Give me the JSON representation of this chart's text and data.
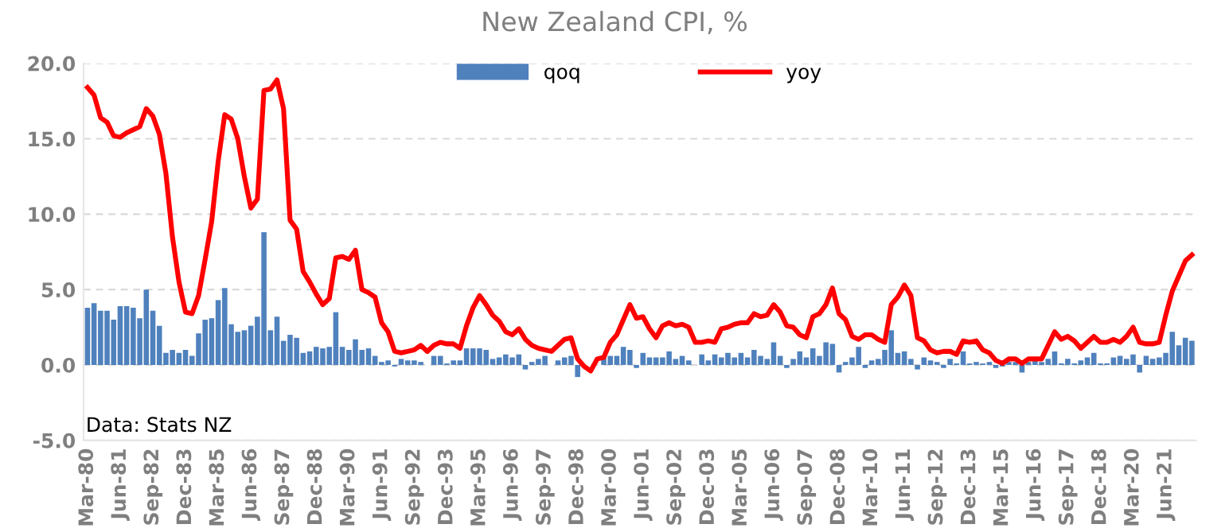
{
  "chart_data": {
    "type": "bar",
    "title": "New Zealand CPI, %",
    "categories": [
      "Mar-80",
      null,
      null,
      null,
      null,
      "Jun-81",
      null,
      null,
      null,
      null,
      "Sep-82",
      null,
      null,
      null,
      null,
      "Dec-83",
      null,
      null,
      null,
      null,
      "Mar-85",
      null,
      null,
      null,
      null,
      "Jun-86",
      null,
      null,
      null,
      null,
      "Sep-87",
      null,
      null,
      null,
      null,
      "Dec-88",
      null,
      null,
      null,
      null,
      "Mar-90",
      null,
      null,
      null,
      null,
      "Jun-91",
      null,
      null,
      null,
      null,
      "Sep-92",
      null,
      null,
      null,
      null,
      "Dec-93",
      null,
      null,
      null,
      null,
      "Mar-95",
      null,
      null,
      null,
      null,
      "Jun-96",
      null,
      null,
      null,
      null,
      "Sep-97",
      null,
      null,
      null,
      null,
      "Dec-98",
      null,
      null,
      null,
      null,
      "Mar-00",
      null,
      null,
      null,
      null,
      "Jun-01",
      null,
      null,
      null,
      null,
      "Sep-02",
      null,
      null,
      null,
      null,
      "Dec-03",
      null,
      null,
      null,
      null,
      "Mar-05",
      null,
      null,
      null,
      null,
      "Jun-06",
      null,
      null,
      null,
      null,
      "Sep-07",
      null,
      null,
      null,
      null,
      "Dec-08",
      null,
      null,
      null,
      null,
      "Mar-10",
      null,
      null,
      null,
      null,
      "Jun-11",
      null,
      null,
      null,
      null,
      "Sep-12",
      null,
      null,
      null,
      null,
      "Dec-13",
      null,
      null,
      null,
      null,
      "Mar-15",
      null,
      null,
      null,
      null,
      "Jun-16",
      null,
      null,
      null,
      null,
      "Sep-17",
      null,
      null,
      null,
      null,
      "Dec-18",
      null,
      null,
      null,
      null,
      "Mar-20",
      null,
      null,
      null,
      null,
      "Jun-21",
      null,
      null,
      null,
      null
    ],
    "series": [
      {
        "name": "qoq",
        "color": "#4f81bd",
        "values": [
          3.8,
          4.1,
          3.6,
          3.6,
          3.0,
          3.9,
          3.9,
          3.8,
          3.1,
          5.0,
          3.6,
          2.6,
          0.8,
          1.0,
          0.8,
          1.0,
          0.6,
          2.1,
          3.0,
          3.1,
          4.3,
          5.1,
          2.7,
          2.2,
          2.3,
          2.6,
          3.2,
          8.8,
          2.3,
          3.2,
          1.6,
          2.0,
          1.8,
          0.8,
          0.9,
          1.2,
          1.1,
          1.2,
          3.5,
          1.2,
          1.0,
          1.7,
          1.0,
          1.1,
          0.6,
          0.2,
          0.3,
          -0.1,
          0.4,
          0.3,
          0.3,
          0.2,
          0.0,
          0.6,
          0.6,
          0.1,
          0.3,
          0.3,
          1.1,
          1.1,
          1.1,
          1.0,
          0.4,
          0.5,
          0.7,
          0.5,
          0.7,
          -0.3,
          0.2,
          0.4,
          0.6,
          0.0,
          0.3,
          0.5,
          0.6,
          -0.8,
          null,
          0.0,
          null,
          0.5,
          0.6,
          0.6,
          1.2,
          1.0,
          -0.2,
          0.8,
          0.5,
          0.5,
          0.5,
          0.9,
          0.4,
          0.6,
          0.3,
          0.0,
          0.7,
          0.3,
          0.7,
          0.5,
          0.8,
          0.5,
          0.8,
          0.5,
          1.0,
          0.6,
          0.4,
          1.5,
          0.6,
          -0.2,
          0.4,
          0.9,
          0.5,
          1.1,
          0.6,
          1.5,
          1.4,
          -0.5,
          0.2,
          0.5,
          1.2,
          -0.2,
          0.3,
          0.4,
          1.0,
          2.3,
          0.8,
          0.9,
          0.4,
          -0.3,
          0.5,
          0.3,
          0.2,
          -0.2,
          0.4,
          0.1,
          0.9,
          0.1,
          0.2,
          0.1,
          0.2,
          -0.2,
          -0.1,
          0.2,
          0.2,
          -0.5,
          0.2,
          0.3,
          0.2,
          0.4,
          0.9,
          0.1,
          0.4,
          0.1,
          0.3,
          0.5,
          0.8,
          0.1,
          0.1,
          0.5,
          0.6,
          0.4,
          0.7,
          -0.5,
          0.6,
          0.4,
          0.5,
          0.8,
          2.2,
          1.3,
          1.8,
          1.6
        ]
      },
      {
        "name": "yoy",
        "type": "line",
        "color": "#ff0000",
        "values": [
          18.4,
          17.9,
          16.4,
          16.1,
          15.2,
          15.1,
          15.4,
          15.6,
          15.8,
          17.0,
          16.5,
          15.3,
          12.7,
          8.5,
          5.5,
          3.5,
          3.4,
          4.6,
          7.0,
          9.5,
          13.5,
          16.6,
          16.3,
          15.0,
          12.5,
          10.4,
          11.0,
          18.2,
          18.3,
          18.9,
          17.0,
          9.6,
          9.0,
          6.2,
          5.5,
          4.7,
          4.0,
          4.4,
          7.1,
          7.2,
          7.0,
          7.6,
          5.0,
          4.8,
          4.5,
          2.8,
          2.2,
          0.9,
          0.8,
          0.9,
          1.0,
          1.3,
          0.9,
          1.3,
          1.5,
          1.4,
          1.4,
          1.1,
          2.6,
          3.8,
          4.6,
          4.0,
          3.3,
          2.9,
          2.2,
          2.0,
          2.4,
          1.7,
          1.3,
          1.1,
          1.0,
          0.9,
          1.3,
          1.7,
          1.8,
          0.4,
          -0.1,
          -0.4,
          0.4,
          0.5,
          1.5,
          2.0,
          3.0,
          4.0,
          3.1,
          3.2,
          2.4,
          1.8,
          2.6,
          2.8,
          2.6,
          2.7,
          2.5,
          1.5,
          1.5,
          1.6,
          1.5,
          2.4,
          2.5,
          2.7,
          2.8,
          2.8,
          3.4,
          3.2,
          3.3,
          4.0,
          3.5,
          2.6,
          2.5,
          2.0,
          1.8,
          3.2,
          3.4,
          4.0,
          5.1,
          3.4,
          3.0,
          1.9,
          1.7,
          2.0,
          2.0,
          1.7,
          1.5,
          4.0,
          4.5,
          5.3,
          4.6,
          1.8,
          1.6,
          1.0,
          0.8,
          0.9,
          0.9,
          0.7,
          1.6,
          1.5,
          1.6,
          1.0,
          0.8,
          0.3,
          0.1,
          0.4,
          0.4,
          0.1,
          0.4,
          0.4,
          0.4,
          1.3,
          2.2,
          1.7,
          1.9,
          1.6,
          1.1,
          1.5,
          1.9,
          1.5,
          1.5,
          1.7,
          1.5,
          1.9,
          2.5,
          1.5,
          1.4,
          1.4,
          1.5,
          3.3,
          4.9,
          5.9,
          6.9,
          7.3
        ]
      }
    ],
    "ylim": [
      -5,
      20
    ],
    "yticks": [
      {
        "value": -5,
        "label": "-5.0"
      },
      {
        "value": 0,
        "label": "0.0"
      },
      {
        "value": 5,
        "label": "5.0"
      },
      {
        "value": 10,
        "label": "10.0"
      },
      {
        "value": 15,
        "label": "15.0"
      },
      {
        "value": 20,
        "label": "20.0"
      }
    ],
    "grid": "y",
    "legend": "top",
    "marker": "none",
    "line_style": "solid",
    "annotations": [
      "Data: Stats NZ"
    ]
  }
}
